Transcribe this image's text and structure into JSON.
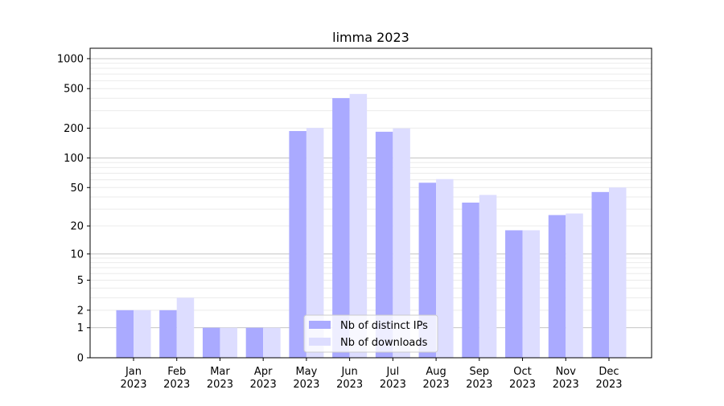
{
  "chart_data": {
    "type": "bar",
    "title": "limma 2023",
    "xlabel": "",
    "ylabel": "",
    "yscale": "log(1+y)",
    "ylim": [
      0,
      1300
    ],
    "yticks": [
      0,
      1,
      2,
      5,
      10,
      20,
      50,
      100,
      200,
      500,
      1000
    ],
    "grid": true,
    "legend_position": "bottom-center",
    "categories": [
      "Jan\n2023",
      "Feb\n2023",
      "Mar\n2023",
      "Apr\n2023",
      "May\n2023",
      "Jun\n2023",
      "Jul\n2023",
      "Aug\n2023",
      "Sep\n2023",
      "Oct\n2023",
      "Nov\n2023",
      "Dec\n2023"
    ],
    "series": [
      {
        "name": "Nb of distinct IPs",
        "color": "#aaaaff",
        "values": [
          2,
          2,
          1,
          1,
          187,
          401,
          184,
          56,
          35,
          18,
          26,
          45
        ]
      },
      {
        "name": "Nb of downloads",
        "color": "#ddddff",
        "values": [
          2,
          3,
          1,
          1,
          201,
          442,
          199,
          61,
          42,
          18,
          27,
          50
        ]
      }
    ]
  }
}
